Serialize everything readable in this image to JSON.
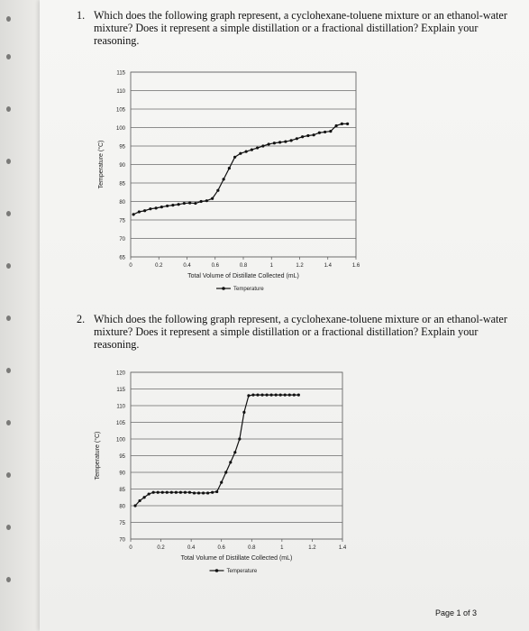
{
  "questions": [
    {
      "number": "1.",
      "text": "Which does the following graph represent, a cyclohexane-toluene mixture or an ethanol-water mixture? Does it represent a simple distillation or a fractional distillation? Explain your reasoning."
    },
    {
      "number": "2.",
      "text": "Which does the following graph represent, a cyclohexane-toluene mixture or an ethanol-water mixture? Does it represent a simple distillation or a fractional distillation? Explain your reasoning."
    }
  ],
  "chart_data": [
    {
      "type": "line",
      "xlabel": "Total Volume of Distillate Collected (mL)",
      "ylabel": "Temperature (°C)",
      "xlim": [
        0,
        1.6
      ],
      "ylim": [
        65,
        115
      ],
      "xticks": [
        "0",
        "0.2",
        "0.4",
        "0.6",
        "0.8",
        "1",
        "1.2",
        "1.4",
        "1.6"
      ],
      "yticks": [
        "115",
        "110",
        "105",
        "100",
        "95",
        "90",
        "85",
        "80",
        "75",
        "70",
        "65"
      ],
      "grid": "horizontal",
      "legend": "bottom",
      "series": [
        {
          "name": "Temperature",
          "points": [
            [
              0.02,
              76.5
            ],
            [
              0.06,
              77.2
            ],
            [
              0.1,
              77.5
            ],
            [
              0.14,
              78.0
            ],
            [
              0.18,
              78.2
            ],
            [
              0.22,
              78.5
            ],
            [
              0.26,
              78.8
            ],
            [
              0.3,
              79.0
            ],
            [
              0.34,
              79.2
            ],
            [
              0.38,
              79.5
            ],
            [
              0.42,
              79.6
            ],
            [
              0.46,
              79.5
            ],
            [
              0.5,
              80.0
            ],
            [
              0.54,
              80.2
            ],
            [
              0.58,
              80.8
            ],
            [
              0.62,
              83.0
            ],
            [
              0.66,
              86.0
            ],
            [
              0.7,
              89.0
            ],
            [
              0.74,
              92.0
            ],
            [
              0.78,
              93.0
            ],
            [
              0.82,
              93.5
            ],
            [
              0.86,
              94.0
            ],
            [
              0.9,
              94.5
            ],
            [
              0.94,
              95.0
            ],
            [
              0.98,
              95.5
            ],
            [
              1.02,
              95.8
            ],
            [
              1.06,
              96.0
            ],
            [
              1.1,
              96.2
            ],
            [
              1.14,
              96.5
            ],
            [
              1.18,
              97.0
            ],
            [
              1.22,
              97.5
            ],
            [
              1.26,
              97.8
            ],
            [
              1.3,
              98.0
            ],
            [
              1.34,
              98.6
            ],
            [
              1.38,
              98.8
            ],
            [
              1.42,
              99.0
            ],
            [
              1.46,
              100.5
            ],
            [
              1.5,
              101.0
            ],
            [
              1.54,
              101.0
            ]
          ]
        }
      ]
    },
    {
      "type": "line",
      "xlabel": "Total Volume of Distillate Collected (mL)",
      "ylabel": "Temperature (°C)",
      "xlim": [
        0,
        1.4
      ],
      "ylim": [
        70,
        120
      ],
      "xticks": [
        "0",
        "0.2",
        "0.4",
        "0.6",
        "0.8",
        "1",
        "1.2",
        "1.4"
      ],
      "yticks": [
        "120",
        "115",
        "110",
        "105",
        "100",
        "95",
        "90",
        "85",
        "80",
        "75",
        "70"
      ],
      "grid": "horizontal",
      "legend": "bottom",
      "series": [
        {
          "name": "Temperature",
          "points": [
            [
              0.03,
              80.0
            ],
            [
              0.06,
              81.5
            ],
            [
              0.09,
              82.5
            ],
            [
              0.12,
              83.5
            ],
            [
              0.15,
              84.0
            ],
            [
              0.18,
              84.0
            ],
            [
              0.21,
              84.0
            ],
            [
              0.24,
              84.0
            ],
            [
              0.27,
              84.0
            ],
            [
              0.3,
              84.0
            ],
            [
              0.33,
              84.0
            ],
            [
              0.36,
              84.0
            ],
            [
              0.39,
              84.0
            ],
            [
              0.42,
              83.8
            ],
            [
              0.45,
              83.8
            ],
            [
              0.48,
              83.8
            ],
            [
              0.51,
              83.8
            ],
            [
              0.54,
              84.0
            ],
            [
              0.57,
              84.2
            ],
            [
              0.6,
              87.0
            ],
            [
              0.63,
              90.0
            ],
            [
              0.66,
              93.0
            ],
            [
              0.69,
              96.0
            ],
            [
              0.72,
              100.0
            ],
            [
              0.75,
              108.0
            ],
            [
              0.78,
              113.0
            ],
            [
              0.81,
              113.2
            ],
            [
              0.84,
              113.2
            ],
            [
              0.87,
              113.2
            ],
            [
              0.9,
              113.2
            ],
            [
              0.93,
              113.2
            ],
            [
              0.96,
              113.2
            ],
            [
              0.99,
              113.2
            ],
            [
              1.02,
              113.2
            ],
            [
              1.05,
              113.2
            ],
            [
              1.08,
              113.2
            ],
            [
              1.11,
              113.2
            ]
          ]
        }
      ]
    }
  ],
  "footer": {
    "page_label": "Page 1 of 3"
  }
}
